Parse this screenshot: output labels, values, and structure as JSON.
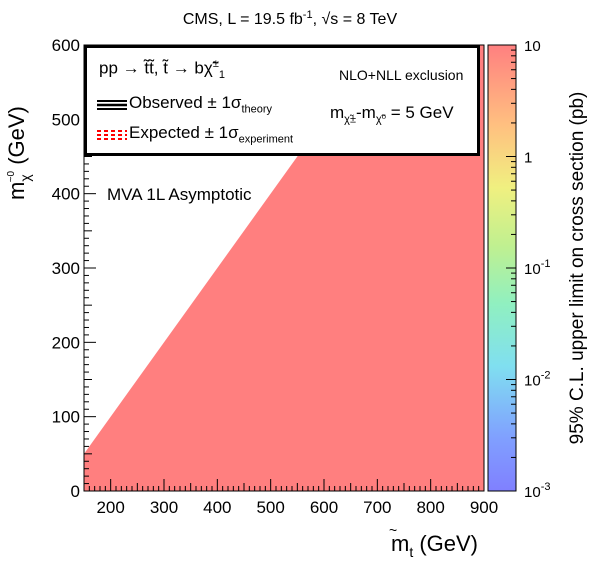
{
  "chart_data": {
    "type": "heatmap",
    "title": "CMS, L = 19.5 fb⁻¹, √s = 8 TeV",
    "xlabel": "m(t̃) (GeV)",
    "ylabel": "m(χ̃⁰) (GeV)",
    "zlabel": "95% C.L. upper limit on cross section (pb)",
    "x_ticks": [
      "200",
      "300",
      "400",
      "500",
      "600",
      "700",
      "800",
      "900"
    ],
    "y_ticks": [
      "0",
      "100",
      "200",
      "300",
      "400",
      "500",
      "600"
    ],
    "z_ticks": [
      "10⁻³",
      "10⁻²",
      "10⁻¹",
      "1",
      "10"
    ],
    "xlim": [
      150,
      900
    ],
    "ylim": [
      0,
      600
    ],
    "zlim": [
      0.001,
      10
    ],
    "z_scale": "log",
    "filled_region": {
      "polygon": [
        [
          150,
          0
        ],
        [
          900,
          0
        ],
        [
          900,
          600
        ],
        [
          700,
          600
        ],
        [
          150,
          50
        ]
      ],
      "value_pb": 10,
      "color": "#ff7f7f"
    },
    "legend": {
      "process": "pp → t̃t̃, t̃ → bχ̃±₁",
      "exclusion": "NLO+NLL exclusion",
      "observed": "Observed ± 1σtheory",
      "expected": "Expected ± 1σexperiment",
      "mass_splitting": "m(χ̃±) - m(χ̃⁰) = 5 GeV"
    },
    "annotation": "MVA 1L Asymptotic"
  },
  "text": {
    "title_prefix": "CMS, L = 19.5 fb",
    "title_exp": "-1",
    "title_sep": ", ",
    "title_sqrt": "√",
    "title_tail": "s = 8 TeV",
    "xlabel_m": "m",
    "xlabel_sub": "t",
    "xlabel_tilde": "~",
    "xlabel_unit": " (GeV)",
    "ylabel_m": "m",
    "ylabel_sub": "χ",
    "ylabel_sup": "~0",
    "ylabel_unit": " (GeV)",
    "zlabel": "95% C.L. upper limit on cross section (pb)",
    "leg_pp": "pp → ",
    "leg_ttbar": "t̃t̃, t̃ → bχ̃",
    "leg_chi_sup": "±",
    "leg_chi_sub": "1",
    "leg_nlo": "NLO+NLL exclusion",
    "leg_obs": "Observed ± 1σ",
    "leg_obs_sub": "theory",
    "leg_exp": "Expected ± 1σ",
    "leg_exp_sub": "experiment",
    "leg_mass_m1": "m",
    "leg_mass_sub1": "χ̃±",
    "leg_mass_dash": "-m",
    "leg_mass_sub2": "χ̃⁰",
    "leg_mass_val": " = 5 GeV",
    "annotation": "MVA 1L Asymptotic"
  },
  "colors": {
    "fill": "#ff7f7f",
    "frame": "#000000",
    "observed_line": "#000000",
    "expected_line": "#ff0000"
  }
}
